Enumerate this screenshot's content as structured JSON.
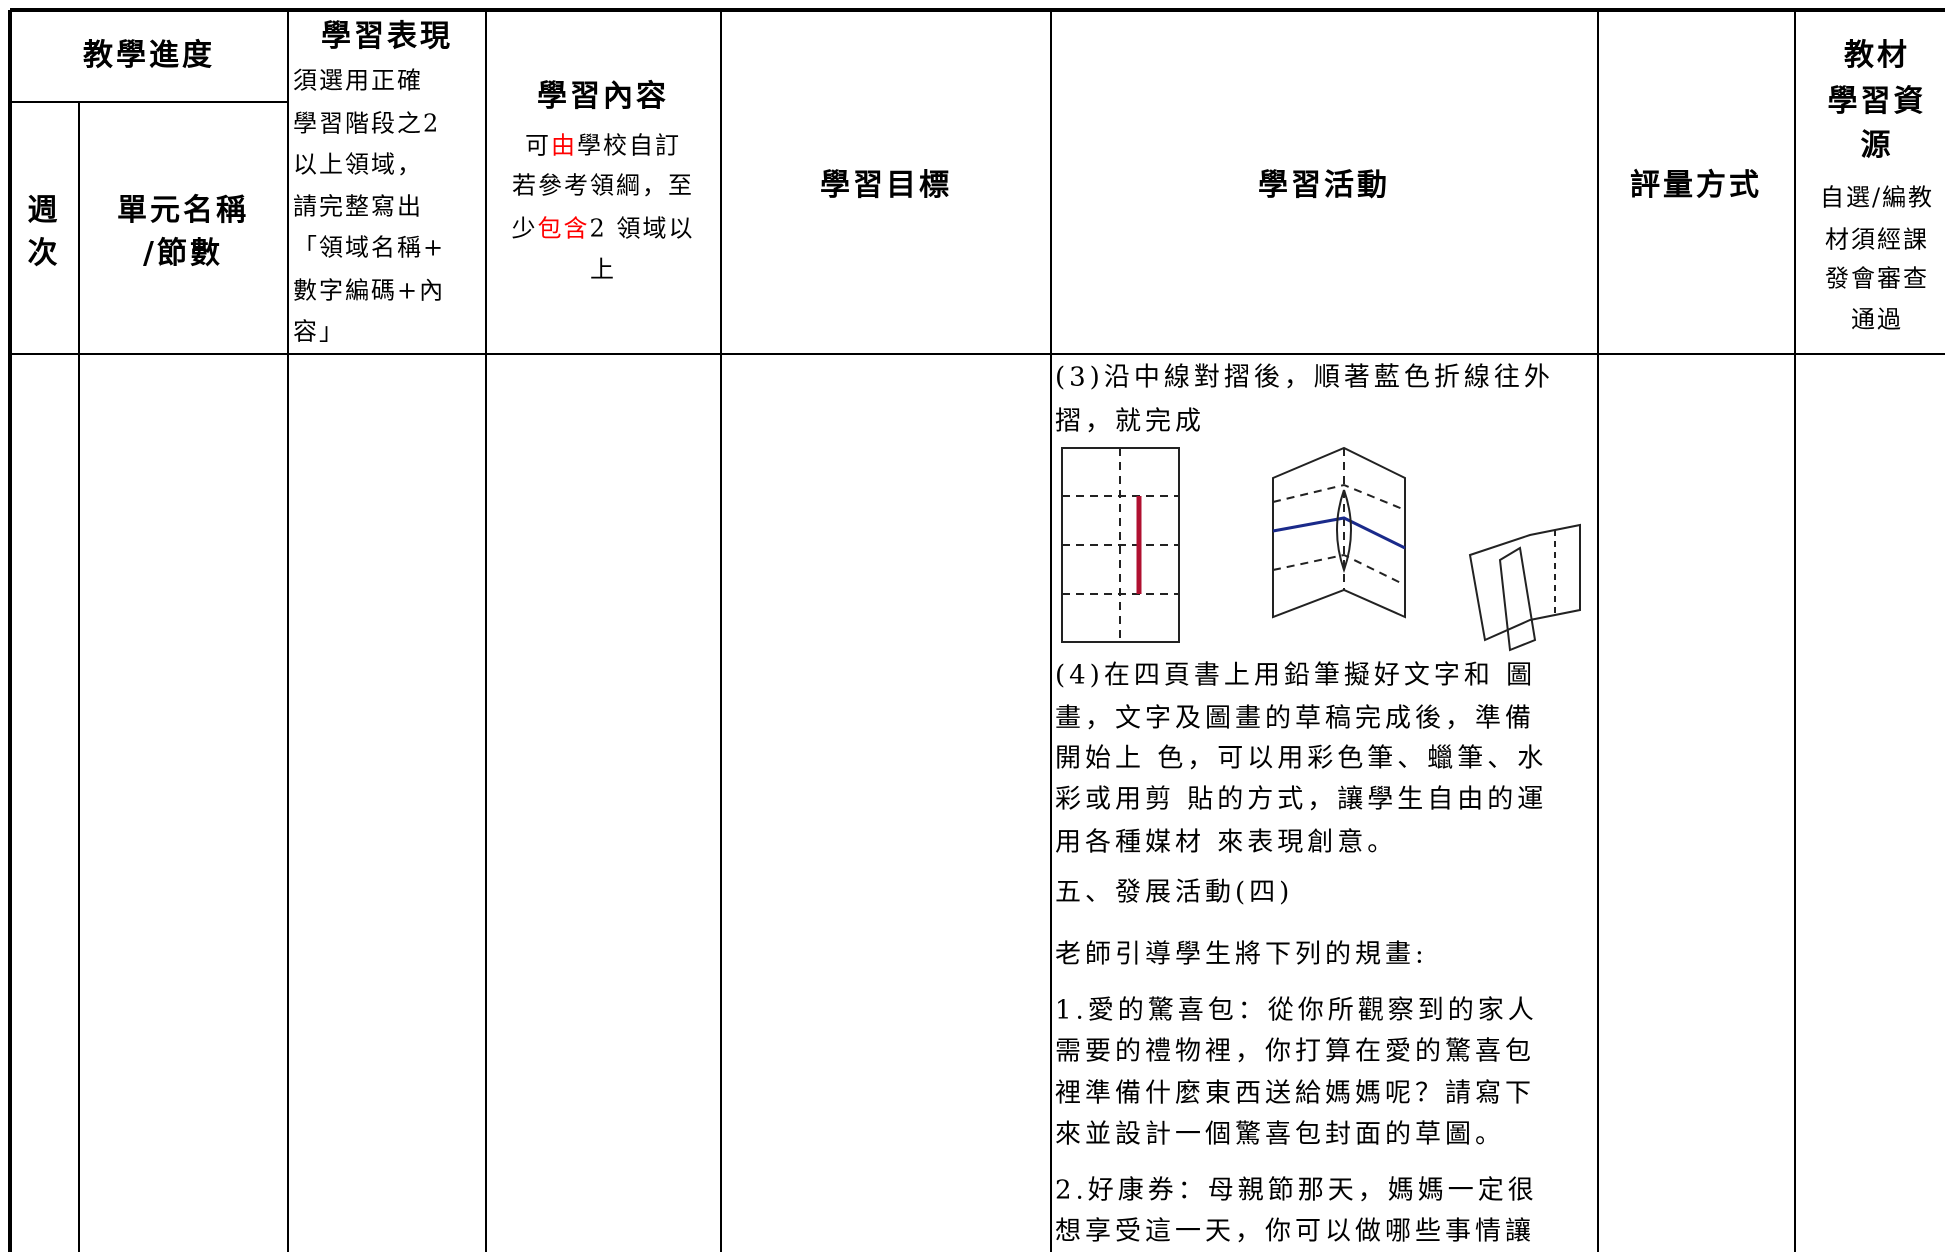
{
  "header": {
    "progress": "教學進度",
    "week": [
      "週",
      "次"
    ],
    "unit": [
      "單元名稱",
      "/節數"
    ],
    "performance": {
      "title": "學習表現",
      "note": [
        "須選用正確",
        "學習階段之2",
        "以上領域，",
        "請完整寫出",
        "「領域名稱+",
        "數字編碼+內",
        "容」"
      ]
    },
    "content": {
      "title": "學習內容",
      "note": [
        [
          {
            "text": "可"
          },
          {
            "text": "由",
            "color": "#ff0000"
          },
          {
            "text": "學校自訂"
          }
        ],
        [
          {
            "text": "若參考領綱，至"
          }
        ],
        [
          {
            "text": "少"
          },
          {
            "text": "包含",
            "color": "#ff0000"
          },
          {
            "text": "2 領域以"
          }
        ],
        [
          {
            "text": "上"
          }
        ]
      ]
    },
    "objective": "學習目標",
    "activity": "學習活動",
    "assessment": "評量方式",
    "materials": {
      "title": [
        "教材",
        "學習資",
        "源"
      ],
      "note": [
        "自選/編教",
        "材須經課",
        "發會審查",
        "通過"
      ]
    }
  },
  "activity": {
    "paragraphs": [
      [
        "(3)沿中線對摺後，順著藍色折線往外",
        "摺，就完成"
      ],
      [
        "(4)在四頁書上用鉛筆擬好文字和 圖",
        "畫，文字及圖畫的草稿完成後，準備",
        "開始上 色，可以用彩色筆、蠟筆、水",
        "彩或用剪 貼的方式，讓學生自由的運",
        "用各種媒材 來表現創意。"
      ],
      [
        "五、發展活動(四)"
      ],
      [
        "老師引導學生將下列的規畫:"
      ],
      [
        " 1.愛的驚喜包：從你所觀察到的家人",
        "需要的禮物裡，你打算在愛的驚喜包",
        "裡準備什麼東西送給媽媽呢？請寫下",
        "來並設計一個驚喜包封面的草圖。"
      ],
      [
        "2.好康券：母親節那天，媽媽一定很",
        "想享受這一天，你可以做哪些事情讓"
      ]
    ]
  }
}
